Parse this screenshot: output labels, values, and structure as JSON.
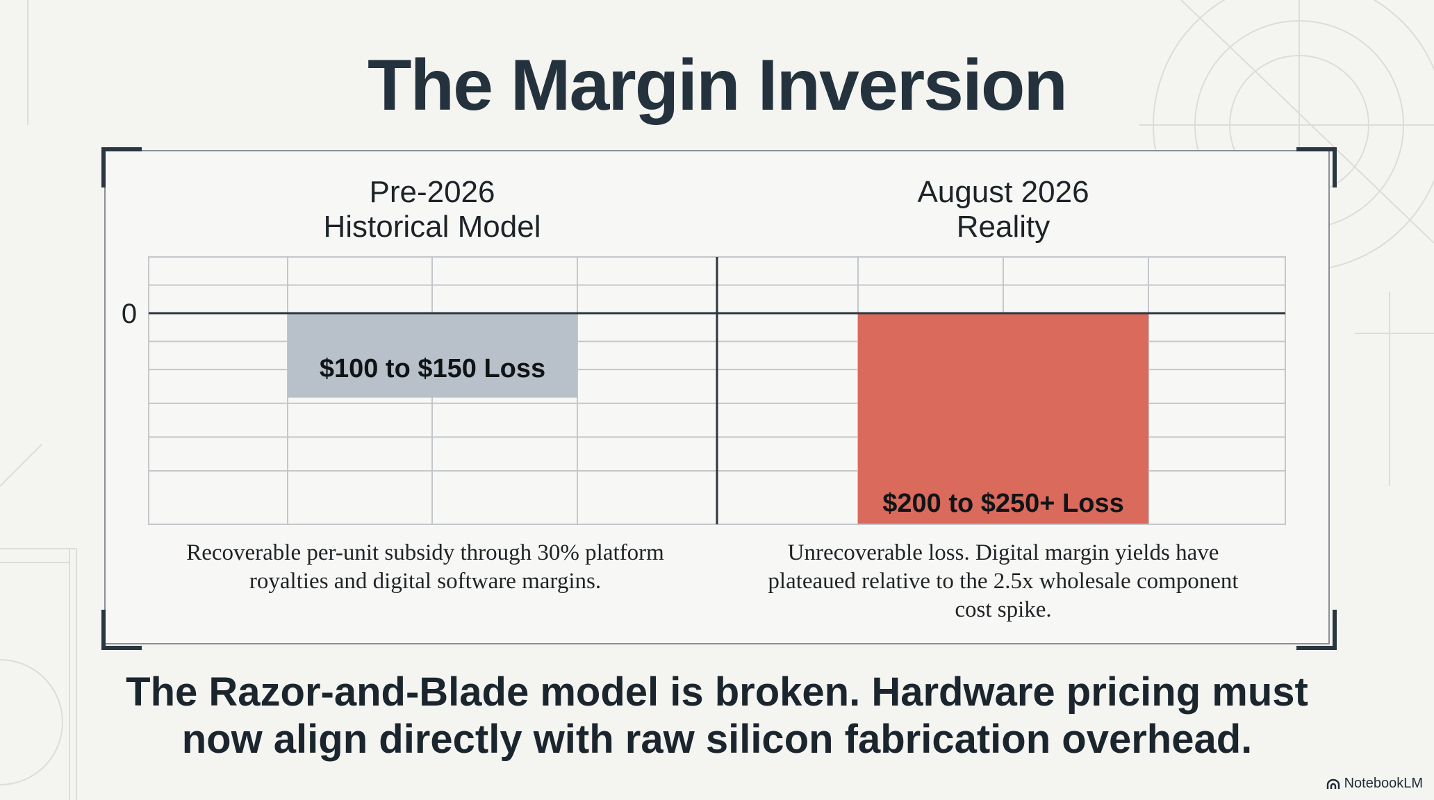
{
  "title": "The Margin Inversion",
  "colors": {
    "grid": "#c4c7ca",
    "axis": "#2b3640",
    "historical_bar": "#b8c1c9",
    "reality_bar": "#d96a5c"
  },
  "chart_data": [
    {
      "type": "bar",
      "title_lines": [
        "Pre-2026",
        "Historical Model"
      ],
      "categories": [
        ""
      ],
      "series": [
        {
          "values": [
            -150
          ]
        }
      ],
      "bar_label": "$100 to $150 Loss",
      "tick_label": "0",
      "ylim": [
        -375,
        100
      ],
      "grid": true,
      "caption": "Recoverable per-unit subsidy through 30% platform royalties and digital software margins."
    },
    {
      "type": "bar",
      "title_lines": [
        "August 2026",
        "Reality"
      ],
      "categories": [
        ""
      ],
      "series": [
        {
          "values": [
            -375
          ]
        }
      ],
      "bar_label": "$200 to $250+ Loss",
      "ylim": [
        -375,
        100
      ],
      "grid": true,
      "caption": "Unrecoverable loss. Digital margin yields have plateaued relative to the 2.5x wholesale component cost spike."
    }
  ],
  "conclusion_lines": [
    "The Razor-and-Blade model is broken. Hardware pricing must",
    "now align directly with raw silicon fabrication overhead."
  ],
  "brand": "NotebookLM",
  "icons": {
    "brand": "notebooklm-logo-icon"
  }
}
